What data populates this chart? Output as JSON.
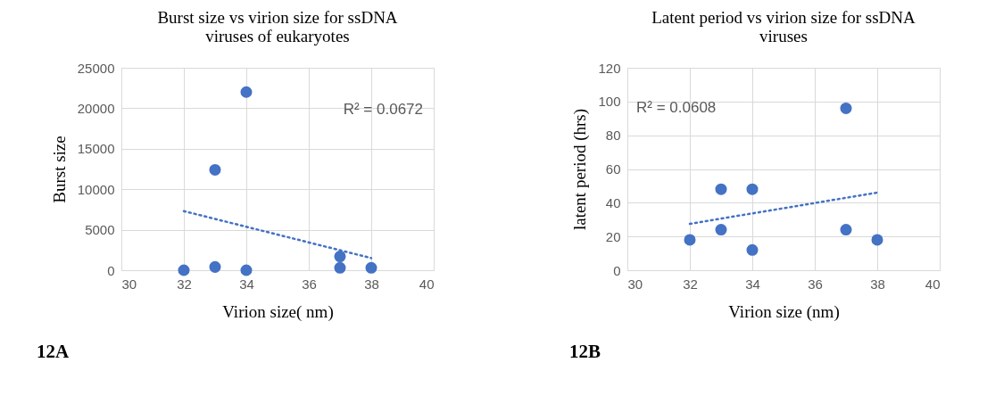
{
  "chart_data": [
    {
      "type": "scatter",
      "title": "Burst size vs virion size for ssDNA viruses of eukaryotes",
      "xlabel": "Virion size( nm)",
      "ylabel": "Burst size",
      "xlim": [
        30,
        40
      ],
      "xticks": [
        30,
        32,
        34,
        36,
        38,
        40
      ],
      "ylim": [
        0,
        25000
      ],
      "yticks": [
        0,
        5000,
        10000,
        15000,
        20000,
        25000
      ],
      "grid": true,
      "marker": "circle",
      "series": [
        {
          "color": "#4472c4",
          "x": [
            32,
            33,
            33,
            34,
            34,
            37,
            37,
            38
          ],
          "values": [
            0,
            400,
            12400,
            0,
            22000,
            1700,
            300,
            300
          ]
        },
        {
          "type": "line",
          "color": "#4472c4",
          "line_style": "dotted",
          "marker": "none",
          "x": [
            32,
            38
          ],
          "values": [
            7300,
            1500
          ]
        }
      ],
      "annotations": [
        "R² = 0.0672",
        "12A"
      ]
    },
    {
      "type": "scatter",
      "title": "Latent period  vs virion size for ssDNA viruses",
      "xlabel": "Virion size (nm)",
      "ylabel": "latent period (hrs)",
      "xlim": [
        30,
        40
      ],
      "xticks": [
        30,
        32,
        34,
        36,
        38,
        40
      ],
      "ylim": [
        0,
        120
      ],
      "yticks": [
        0,
        20,
        40,
        60,
        80,
        100,
        120
      ],
      "grid": true,
      "marker": "circle",
      "series": [
        {
          "color": "#4472c4",
          "x": [
            32,
            33,
            33,
            34,
            34,
            37,
            37,
            38
          ],
          "values": [
            18,
            48,
            24,
            48,
            12,
            96,
            24,
            18
          ]
        },
        {
          "type": "line",
          "color": "#4472c4",
          "line_style": "dotted",
          "marker": "none",
          "x": [
            32,
            38
          ],
          "values": [
            27.5,
            46
          ]
        }
      ],
      "annotations": [
        "R² = 0.0608",
        "12B"
      ]
    }
  ]
}
